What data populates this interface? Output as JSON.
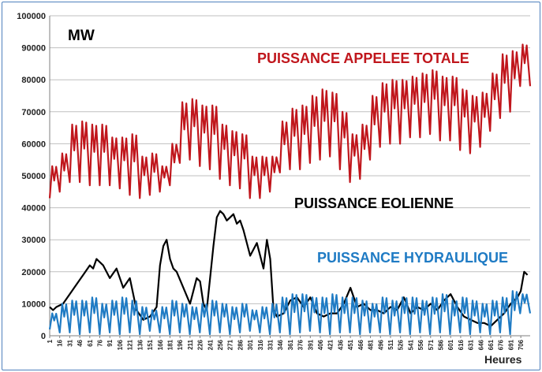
{
  "chart_data": {
    "type": "line",
    "title": "",
    "ylabel": "MW",
    "xlabel": "Heures",
    "ylim": [
      0,
      100000
    ],
    "xlim": [
      1,
      720
    ],
    "yticks": [
      "0",
      "10000",
      "20000",
      "30000",
      "40000",
      "50000",
      "60000",
      "70000",
      "80000",
      "90000",
      "100000"
    ],
    "xticks": [
      "1",
      "16",
      "31",
      "46",
      "61",
      "76",
      "91",
      "106",
      "121",
      "136",
      "151",
      "166",
      "181",
      "196",
      "211",
      "226",
      "241",
      "256",
      "271",
      "286",
      "301",
      "316",
      "331",
      "346",
      "361",
      "376",
      "391",
      "406",
      "421",
      "436",
      "451",
      "466",
      "481",
      "496",
      "511",
      "526",
      "541",
      "556",
      "571",
      "586",
      "601",
      "616",
      "631",
      "646",
      "661",
      "676",
      "691",
      "706"
    ],
    "grid": true,
    "legend": "inline labels",
    "series": [
      {
        "name": "PUISSANCE APPELEE TOTALE",
        "color": "#c0161c",
        "daily_peaks": [
          53000,
          57000,
          66000,
          67000,
          66000,
          66000,
          62000,
          62000,
          63000,
          56000,
          57000,
          53000,
          60000,
          73000,
          74000,
          72000,
          72000,
          66000,
          64000,
          63000,
          56000,
          56000,
          56000,
          67000,
          71000,
          72000,
          75000,
          77000,
          76000,
          70000,
          63000,
          66000,
          75000,
          79000,
          80000,
          80000,
          81000,
          82000,
          83000,
          81000,
          81000,
          77000,
          75000,
          76000,
          82000,
          88000,
          89000,
          91000
        ],
        "daily_troughs": [
          43000,
          45000,
          48000,
          48000,
          47000,
          47000,
          47000,
          46000,
          44000,
          43000,
          44000,
          45000,
          47000,
          54000,
          55000,
          53000,
          52000,
          49000,
          47000,
          46000,
          43000,
          43000,
          45000,
          51000,
          52000,
          52000,
          54000,
          55000,
          56000,
          52000,
          48000,
          49000,
          55000,
          59000,
          60000,
          60000,
          62000,
          62000,
          63000,
          61000,
          61000,
          58000,
          57000,
          59000,
          64000,
          68000,
          70000,
          78000
        ]
      },
      {
        "name": "PUISSANCE EOLIENNE",
        "color": "#000000",
        "x": [
          1,
          6,
          11,
          21,
          31,
          41,
          51,
          61,
          66,
          71,
          81,
          91,
          101,
          111,
          121,
          131,
          141,
          151,
          161,
          166,
          171,
          176,
          181,
          186,
          191,
          201,
          211,
          216,
          221,
          226,
          231,
          236,
          241,
          246,
          251,
          256,
          261,
          266,
          271,
          276,
          281,
          286,
          291,
          301,
          311,
          321,
          326,
          331,
          336,
          341,
          351,
          361,
          371,
          381,
          391,
          401,
          411,
          421,
          431,
          441,
          451,
          461,
          471,
          481,
          491,
          501,
          511,
          521,
          531,
          541,
          551,
          561,
          571,
          581,
          591,
          601,
          611,
          621,
          631,
          641,
          651,
          661,
          671,
          681,
          691,
          701,
          706,
          711,
          716
        ],
        "values": [
          9000,
          8000,
          9000,
          10000,
          13000,
          16000,
          19000,
          22000,
          21000,
          24000,
          22000,
          18000,
          21000,
          15000,
          18000,
          8000,
          5000,
          6000,
          9000,
          22000,
          28000,
          30000,
          24000,
          21000,
          20000,
          15000,
          10000,
          14000,
          18000,
          17000,
          10000,
          8000,
          18000,
          28000,
          37000,
          39000,
          38000,
          36000,
          37000,
          38000,
          35000,
          36000,
          33000,
          25000,
          29000,
          21000,
          30000,
          24000,
          8000,
          6000,
          7000,
          11000,
          12000,
          9000,
          12000,
          7000,
          6000,
          7000,
          7000,
          10000,
          15000,
          9000,
          10000,
          8000,
          8000,
          7000,
          9000,
          8000,
          12000,
          7000,
          9000,
          8000,
          10000,
          8000,
          11000,
          13000,
          9000,
          6000,
          5000,
          4000,
          4000,
          3000,
          5000,
          7000,
          10000,
          12000,
          14000,
          20000,
          19000
        ]
      },
      {
        "name": "PUISSANCE HYDRAULIQUE",
        "color": "#1f7bc4",
        "daily_peaks": [
          7000,
          10000,
          11000,
          11000,
          12000,
          10000,
          11000,
          12000,
          11000,
          9000,
          8000,
          9000,
          11000,
          10000,
          9000,
          10000,
          11000,
          10000,
          9000,
          10000,
          8000,
          9000,
          10000,
          12000,
          13000,
          13000,
          12000,
          12000,
          13000,
          12000,
          12000,
          11000,
          10000,
          12000,
          11000,
          12000,
          12000,
          11000,
          12000,
          13000,
          11000,
          12000,
          11000,
          10000,
          11000,
          12000,
          14000,
          13000
        ],
        "daily_troughs": [
          2000,
          1000,
          1000,
          500,
          1000,
          500,
          1000,
          500,
          1000,
          500,
          1500,
          1000,
          500,
          1000,
          500,
          1000,
          500,
          1000,
          500,
          1000,
          1500,
          1000,
          500,
          1000,
          500,
          1000,
          1500,
          1000,
          500,
          1000,
          1000,
          500,
          1000,
          1000,
          500,
          1000,
          500,
          1000,
          500,
          1000,
          500,
          1000,
          500,
          1000,
          500,
          1000,
          500,
          7000
        ]
      }
    ]
  }
}
